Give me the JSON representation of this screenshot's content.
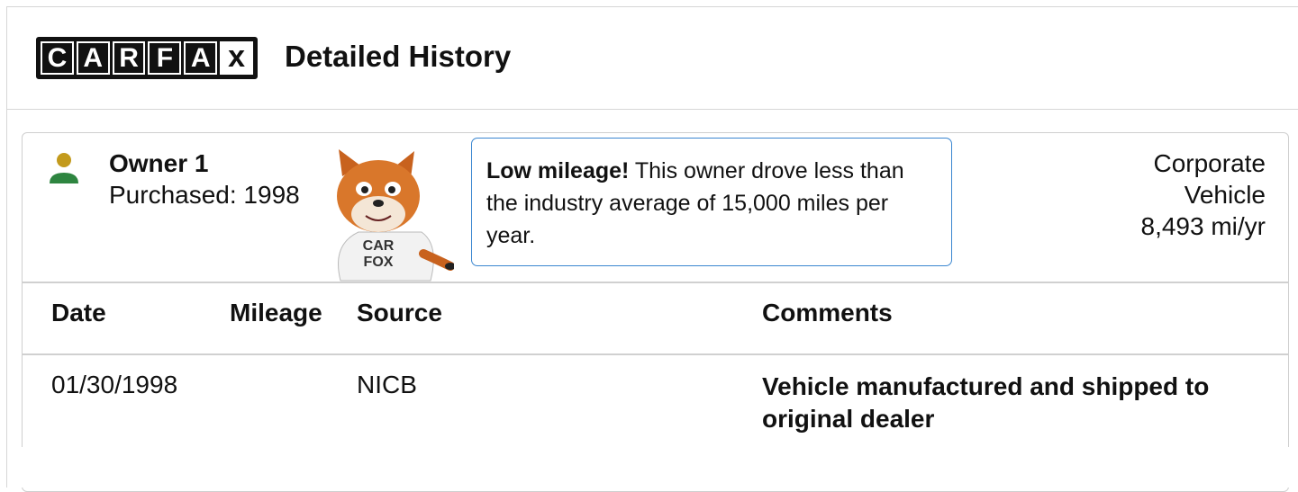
{
  "header": {
    "logo_letters": [
      "C",
      "A",
      "R",
      "F",
      "A",
      "x"
    ],
    "title": "Detailed History"
  },
  "owner": {
    "name": "Owner 1",
    "purchased": "Purchased: 1998",
    "mascot_shirt": [
      "CAR",
      "FOX"
    ],
    "callout": {
      "emphasis": "Low mileage!",
      "text": "This owner drove less than the industry average of 15,000 miles per year."
    },
    "type": "Corporate Vehicle",
    "mileage_rate": "8,493 mi/yr"
  },
  "table": {
    "headers": [
      "Date",
      "Mileage",
      "Source",
      "Comments"
    ],
    "rows": [
      {
        "date": "01/30/1998",
        "source": "NICB",
        "comments": "Vehicle manufactured and shipped to original dealer"
      }
    ]
  }
}
